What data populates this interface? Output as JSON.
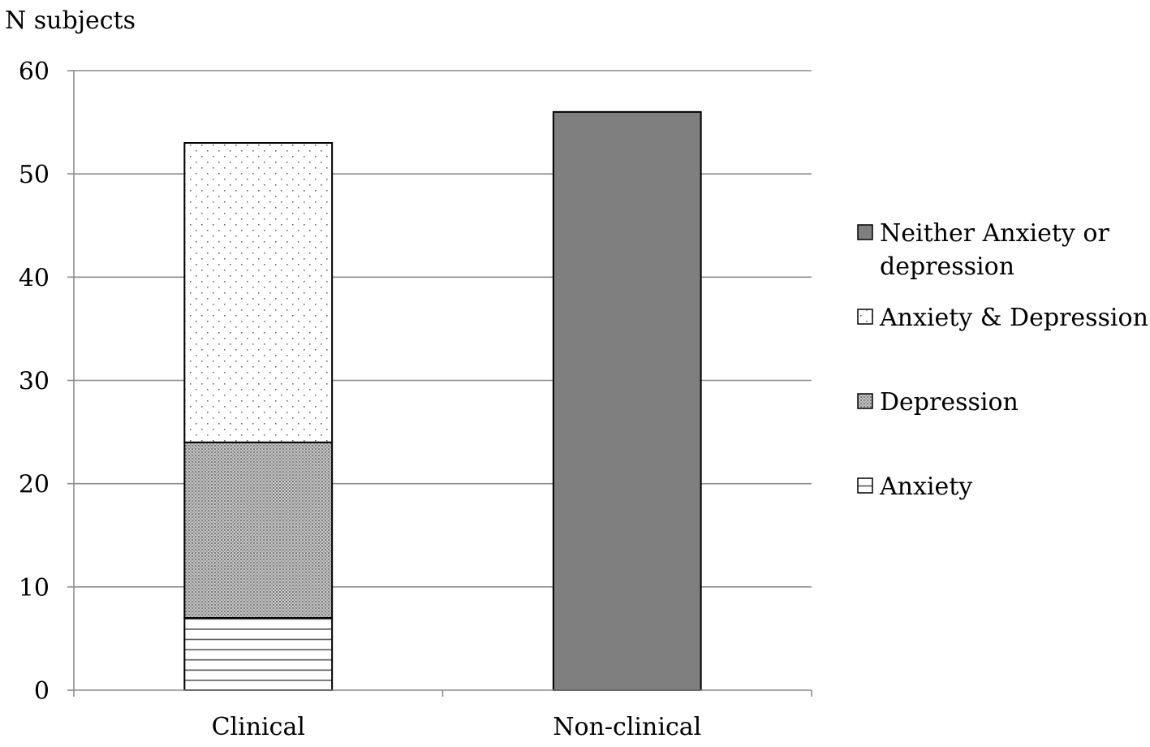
{
  "chart_data": {
    "type": "bar",
    "stacked": true,
    "title": "",
    "xlabel": "",
    "ylabel": "N subjects",
    "ylim": [
      0,
      60
    ],
    "yticks": [
      0,
      10,
      20,
      30,
      40,
      50,
      60
    ],
    "grid": true,
    "legend_position": "right",
    "categories": [
      "Clinical",
      "Non-clinical"
    ],
    "series": [
      {
        "name": "Anxiety",
        "values": [
          7,
          0
        ],
        "pattern": "horizontal-lines",
        "color": "#ffffff"
      },
      {
        "name": "Depression",
        "values": [
          17,
          0
        ],
        "pattern": "dense-crosshatch",
        "color": "#bdbdbd"
      },
      {
        "name": "Anxiety & Depression",
        "values": [
          29,
          0
        ],
        "pattern": "sparse-dots",
        "color": "#ffffff"
      },
      {
        "name": "Neither Anxiety or depression",
        "values": [
          0,
          56
        ],
        "pattern": "solid",
        "color": "#7f7f7f"
      }
    ],
    "legend_order": [
      [
        "Neither Anxiety or",
        "depression"
      ],
      [
        "Anxiety & Depression"
      ],
      [
        "Depression"
      ],
      [
        "Anxiety"
      ]
    ],
    "legend_series_index": [
      3,
      2,
      1,
      0
    ]
  }
}
